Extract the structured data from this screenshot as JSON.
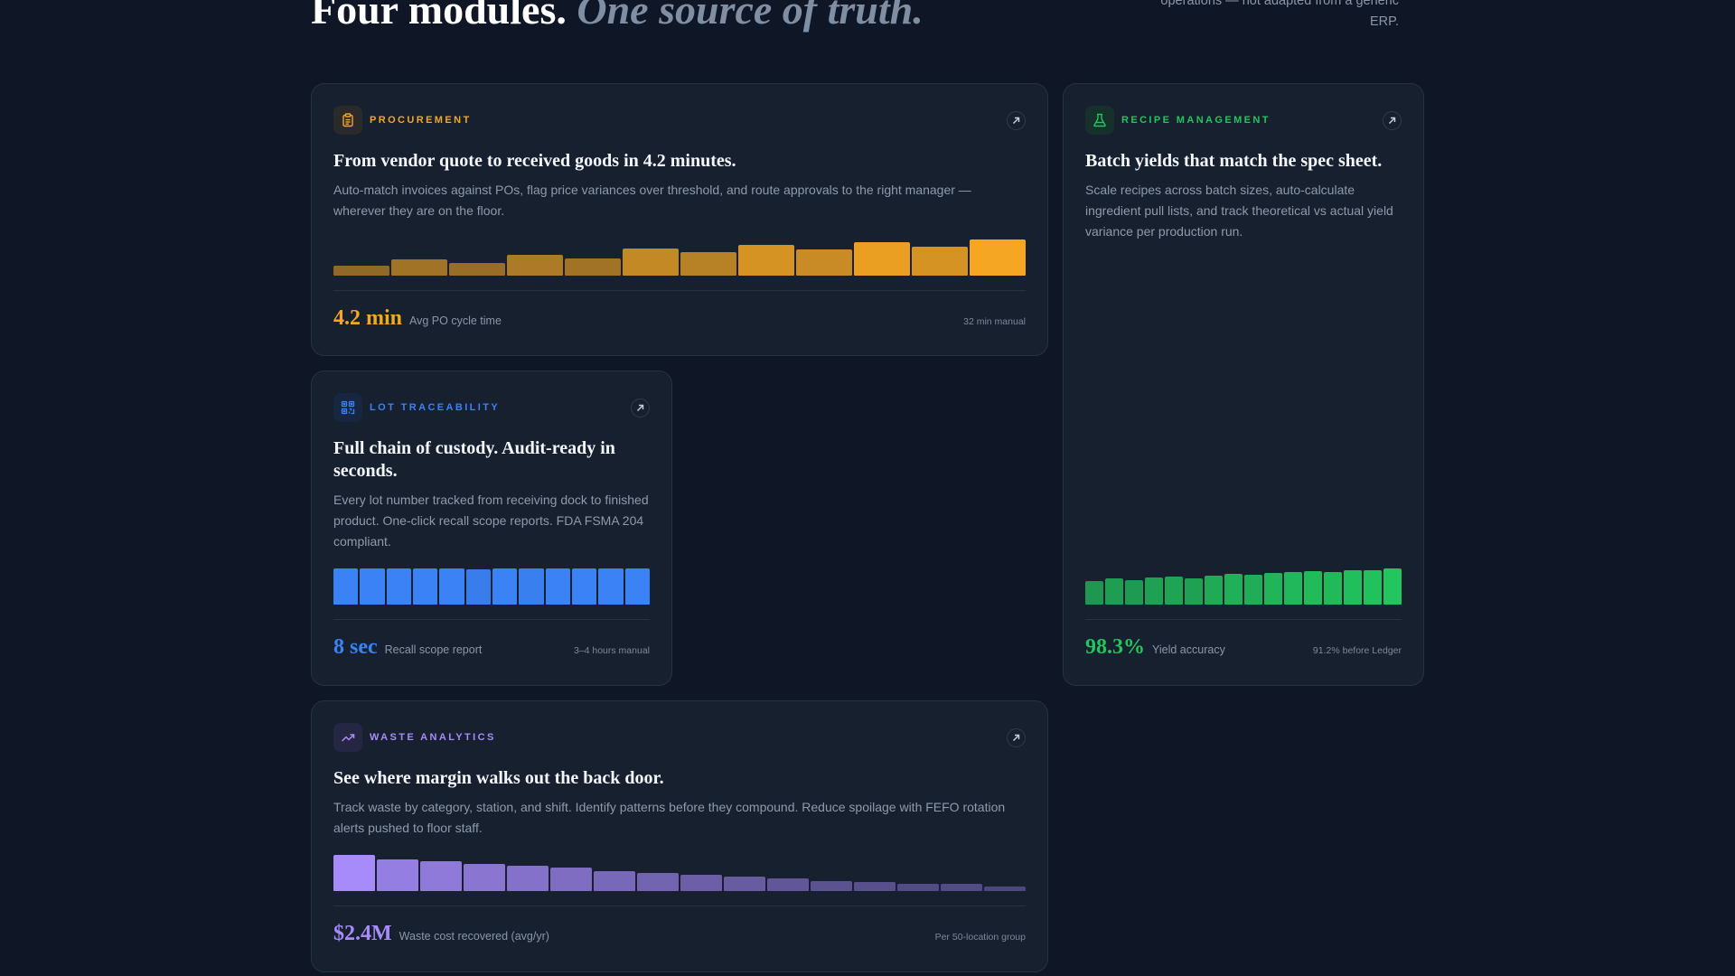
{
  "header": {
    "title_bold": "Four modules.",
    "title_italic": "One source of truth.",
    "description": "operations — not adapted from a generic ERP."
  },
  "modules": [
    {
      "id": "procurement",
      "label": "PROCUREMENT",
      "icon": "clipboard-icon",
      "accent": "#f5a623",
      "title": "From vendor quote to received goods in 4.2 minutes.",
      "description": "Auto-match invoices against POs, flag price variances over threshold, and route approvals to the right manager — wherever they are on the floor.",
      "metric_value": "4.2 min",
      "metric_label": "Avg PO cycle time",
      "metric_note": "32 min manual",
      "bar_levels": [
        0.28,
        0.45,
        0.35,
        0.58,
        0.48,
        0.74,
        0.64,
        0.84,
        0.72,
        0.92,
        0.8,
        1.0
      ],
      "bar_opacity": [
        0.55,
        0.62,
        0.58,
        0.68,
        0.62,
        0.78,
        0.72,
        0.86,
        0.8,
        0.95,
        0.86,
        1.0
      ]
    },
    {
      "id": "recipe",
      "label": "RECIPE MANAGEMENT",
      "icon": "flask-icon",
      "accent": "#22c55e",
      "title": "Batch yields that match the spec sheet.",
      "description": "Scale recipes across batch sizes, auto-calculate ingredient pull lists, and track theoretical vs actual yield variance per production run.",
      "metric_value": "98.3%",
      "metric_label": "Yield accuracy",
      "metric_note": "91.2% before Ledger",
      "bar_levels": [
        0.66,
        0.72,
        0.68,
        0.75,
        0.78,
        0.72,
        0.8,
        0.84,
        0.82,
        0.88,
        0.9,
        0.92,
        0.9,
        0.94,
        0.96,
        1.0
      ],
      "bar_opacity": [
        0.72,
        0.76,
        0.74,
        0.78,
        0.8,
        0.78,
        0.84,
        0.88,
        0.86,
        0.9,
        0.92,
        0.94,
        0.93,
        0.96,
        0.98,
        1.0
      ]
    },
    {
      "id": "lot",
      "label": "LOT TRACEABILITY",
      "icon": "qr-code-icon",
      "accent": "#3b82f6",
      "title": "Full chain of custody. Audit-ready in seconds.",
      "description": "Every lot number tracked from receiving dock to finished product. One-click recall scope reports. FDA FSMA 204 compliant.",
      "metric_value": "8 sec",
      "metric_label": "Recall scope report",
      "metric_note": "3–4 hours manual",
      "bar_levels": [
        1,
        1,
        1,
        1,
        1,
        0.97,
        1,
        0.99,
        1,
        1,
        1,
        1
      ],
      "bar_opacity": [
        1,
        1,
        1,
        1,
        1,
        0.95,
        1,
        0.97,
        1,
        1,
        1,
        1
      ]
    },
    {
      "id": "waste",
      "label": "WASTE ANALYTICS",
      "icon": "trend-up-icon",
      "accent": "#a78bfa",
      "title": "See where margin walks out the back door.",
      "description": "Track waste by category, station, and shift. Identify patterns before they compound. Reduce spoilage with FEFO rotation alerts pushed to floor staff.",
      "metric_value": "$2.4M",
      "metric_label": "Waste cost recovered (avg/yr)",
      "metric_note": "Per 50-location group",
      "bar_levels": [
        1.0,
        0.88,
        0.82,
        0.76,
        0.7,
        0.64,
        0.56,
        0.5,
        0.46,
        0.4,
        0.34,
        0.28,
        0.24,
        0.2,
        0.2,
        0.12
      ],
      "bar_opacity": [
        1.0,
        0.88,
        0.84,
        0.8,
        0.76,
        0.72,
        0.68,
        0.64,
        0.6,
        0.56,
        0.52,
        0.48,
        0.45,
        0.42,
        0.42,
        0.38
      ]
    }
  ]
}
